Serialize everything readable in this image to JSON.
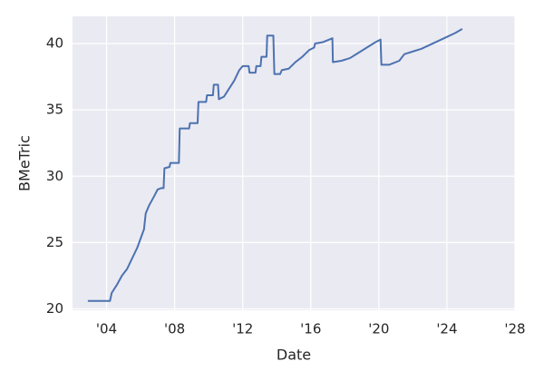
{
  "chart_data": {
    "type": "line",
    "x_label": "Date",
    "y_label": "BMeTric",
    "grid": true,
    "background": "#eaeaf2",
    "xlim": [
      2002,
      2028
    ],
    "ylim": [
      19.9,
      42.05
    ],
    "xticks": [
      {
        "value": 2004,
        "label": "'04"
      },
      {
        "value": 2008,
        "label": "'08"
      },
      {
        "value": 2012,
        "label": "'12"
      },
      {
        "value": 2016,
        "label": "'16"
      },
      {
        "value": 2020,
        "label": "'20"
      },
      {
        "value": 2024,
        "label": "'24"
      },
      {
        "value": 2028,
        "label": "'28"
      }
    ],
    "yticks": [
      20,
      25,
      30,
      35,
      40
    ],
    "x": [
      2002.9,
      2004.2,
      2004.3,
      2004.6,
      2004.9,
      2005.2,
      2005.5,
      2005.8,
      2006.0,
      2006.2,
      2006.3,
      2006.5,
      2006.8,
      2007.0,
      2007.2,
      2007.35,
      2007.4,
      2007.7,
      2007.75,
      2008.25,
      2008.3,
      2008.85,
      2008.9,
      2009.35,
      2009.4,
      2009.85,
      2009.9,
      2010.25,
      2010.3,
      2010.55,
      2010.6,
      2010.9,
      2011.2,
      2011.5,
      2011.8,
      2012.0,
      2012.35,
      2012.4,
      2012.75,
      2012.8,
      2013.05,
      2013.1,
      2013.4,
      2013.44,
      2013.8,
      2013.86,
      2014.2,
      2014.3,
      2014.7,
      2015.1,
      2015.5,
      2015.9,
      2016.2,
      2016.25,
      2016.7,
      2017.27,
      2017.3,
      2017.8,
      2018.3,
      2018.8,
      2019.3,
      2019.8,
      2020.1,
      2020.15,
      2020.6,
      2021.2,
      2021.5,
      2022.0,
      2022.5,
      2023.0,
      2023.5,
      2024.0,
      2024.5,
      2024.9
    ],
    "series": [
      {
        "name": "BMeTric",
        "color": "#4c72b0",
        "values": [
          20.6,
          20.6,
          21.2,
          21.8,
          22.5,
          23.0,
          23.8,
          24.6,
          25.3,
          26.0,
          27.2,
          27.8,
          28.5,
          29.0,
          29.1,
          29.1,
          30.6,
          30.7,
          31.0,
          31.0,
          33.6,
          33.6,
          34.0,
          34.0,
          35.6,
          35.6,
          36.1,
          36.1,
          36.9,
          36.9,
          35.8,
          36.0,
          36.6,
          37.2,
          38.0,
          38.3,
          38.3,
          37.8,
          37.8,
          38.3,
          38.3,
          39.0,
          39.0,
          40.6,
          40.6,
          37.7,
          37.7,
          38.0,
          38.1,
          38.6,
          39.0,
          39.5,
          39.7,
          40.0,
          40.1,
          40.4,
          38.6,
          38.7,
          38.9,
          39.3,
          39.7,
          40.1,
          40.3,
          38.4,
          38.4,
          38.7,
          39.2,
          39.4,
          39.6,
          39.9,
          40.2,
          40.5,
          40.8,
          41.1
        ]
      }
    ]
  }
}
